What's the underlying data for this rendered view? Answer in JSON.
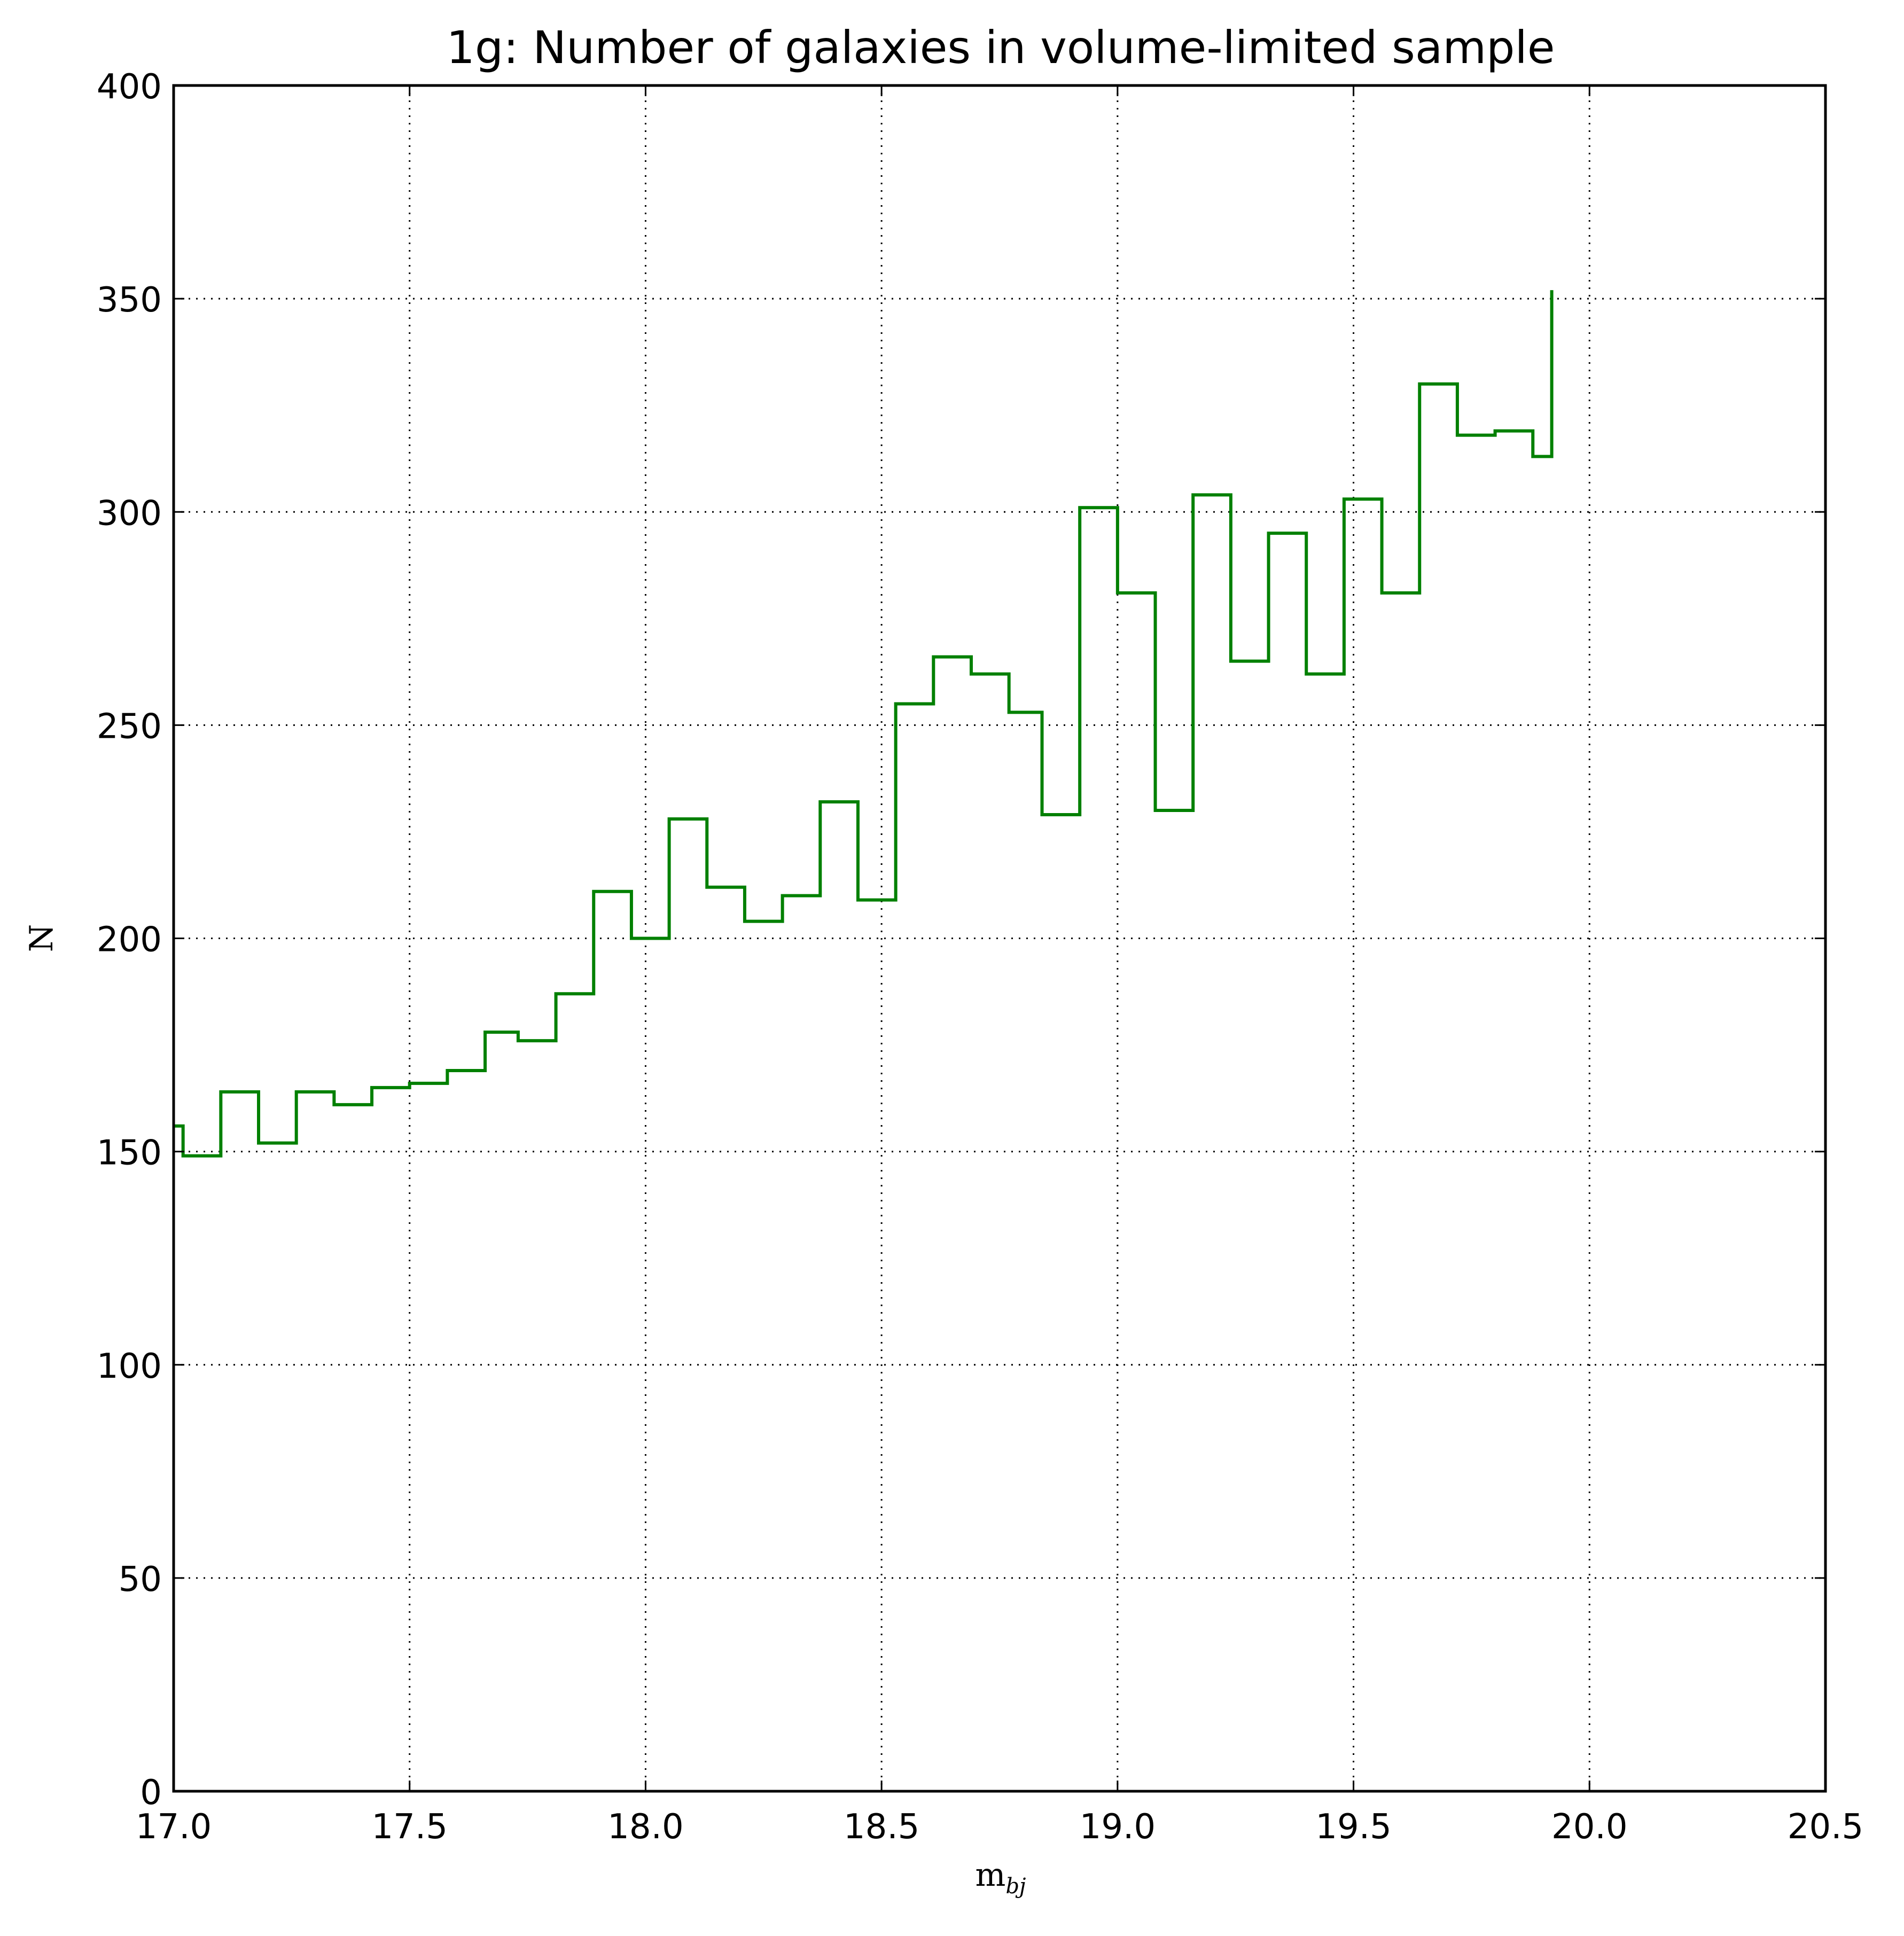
{
  "chart_data": {
    "type": "step",
    "title": "1g: Number of galaxies in volume-limited sample",
    "xlabel": "m",
    "xlabel_sub": "bj",
    "ylabel": "N",
    "xlim": [
      17.0,
      20.5
    ],
    "ylim": [
      0,
      400
    ],
    "xticks": [
      "17.0",
      "17.5",
      "18.0",
      "18.5",
      "19.0",
      "19.5",
      "20.0",
      "20.5"
    ],
    "yticks": [
      "0",
      "50",
      "100",
      "150",
      "200",
      "250",
      "300",
      "350",
      "400"
    ],
    "grid": true,
    "series": [
      {
        "color": "#008000",
        "x": [
          17.0,
          17.02,
          17.1,
          17.18,
          17.26,
          17.34,
          17.42,
          17.5,
          17.58,
          17.66,
          17.73,
          17.81,
          17.89,
          17.97,
          18.05,
          18.13,
          18.21,
          18.29,
          18.37,
          18.45,
          18.53,
          18.61,
          18.69,
          18.77,
          18.84,
          18.92,
          19.0,
          19.08,
          19.16,
          19.24,
          19.32,
          19.4,
          19.48,
          19.56,
          19.64,
          19.72,
          19.8,
          19.88,
          19.92
        ],
        "y": [
          156,
          149,
          164,
          152,
          164,
          161,
          165,
          166,
          169,
          178,
          176,
          187,
          211,
          200,
          228,
          212,
          204,
          210,
          232,
          209,
          255,
          266,
          262,
          253,
          229,
          301,
          281,
          230,
          304,
          265,
          295,
          262,
          303,
          281,
          330,
          318,
          319,
          313,
          352
        ]
      }
    ]
  }
}
